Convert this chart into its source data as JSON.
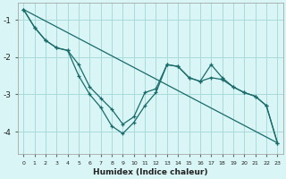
{
  "xlabel": "Humidex (Indice chaleur)",
  "background_color": "#d9f5f5",
  "grid_color": "#aadada",
  "line_color": "#1a6b6b",
  "xlim": [
    -0.5,
    23.5
  ],
  "ylim": [
    -4.6,
    -0.55
  ],
  "yticks": [
    -4,
    -3,
    -2,
    -1
  ],
  "xticks": [
    0,
    1,
    2,
    3,
    4,
    5,
    6,
    7,
    8,
    9,
    10,
    11,
    12,
    13,
    14,
    15,
    16,
    17,
    18,
    19,
    20,
    21,
    22,
    23
  ],
  "line_straight": {
    "x": [
      0,
      23
    ],
    "y": [
      -0.72,
      -4.3
    ]
  },
  "line_mild": {
    "x": [
      0,
      1,
      2,
      3,
      4,
      5,
      6,
      7,
      8,
      9,
      10,
      11,
      12,
      13,
      14,
      15,
      16,
      17,
      18,
      19,
      20,
      21,
      22,
      23
    ],
    "y": [
      -0.72,
      -1.2,
      -1.55,
      -1.75,
      -1.82,
      -2.2,
      -2.8,
      -3.1,
      -3.4,
      -3.8,
      -3.6,
      -2.95,
      -2.85,
      -2.2,
      -2.25,
      -2.55,
      -2.65,
      -2.55,
      -2.6,
      -2.8,
      -2.95,
      -3.05,
      -3.3,
      -4.3
    ]
  },
  "line_deep": {
    "x": [
      0,
      1,
      2,
      3,
      4,
      5,
      6,
      7,
      8,
      9,
      10,
      11,
      12,
      13,
      14,
      15,
      16,
      17,
      18,
      19,
      20,
      21,
      22,
      23
    ],
    "y": [
      -0.72,
      -1.2,
      -1.55,
      -1.75,
      -1.82,
      -2.5,
      -3.0,
      -3.35,
      -3.85,
      -4.05,
      -3.75,
      -3.3,
      -2.95,
      -2.2,
      -2.25,
      -2.55,
      -2.65,
      -2.2,
      -2.55,
      -2.8,
      -2.95,
      -3.05,
      -3.3,
      -4.3
    ]
  }
}
